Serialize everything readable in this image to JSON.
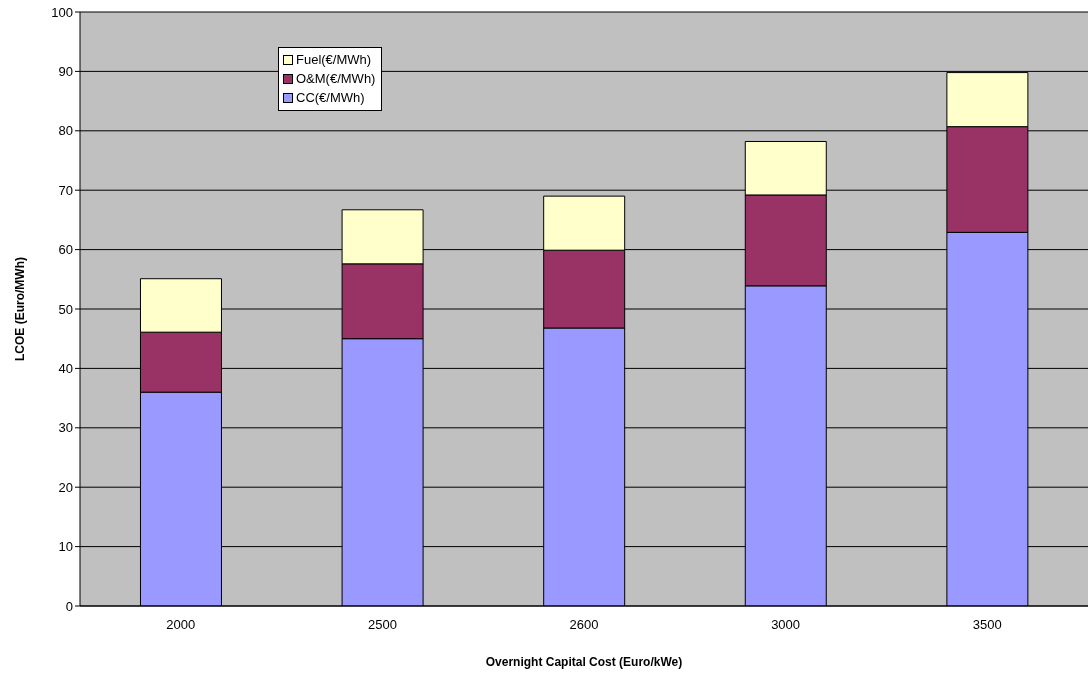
{
  "chart_data": {
    "type": "bar",
    "xlabel": "Overnight Capital Cost (Euro/kWe)",
    "ylabel": "LCOE (Euro/MWh)",
    "categories": [
      "2000",
      "2500",
      "2600",
      "3000",
      "3500"
    ],
    "stacked": true,
    "series": [
      {
        "name": "CC(€/MWh)",
        "color": "#9999ff",
        "values": [
          36,
          45,
          46.8,
          53.9,
          62.9
        ]
      },
      {
        "name": "O&M(€/MWh)",
        "color": "#993366",
        "values": [
          10.1,
          12.6,
          13.1,
          15.3,
          17.8
        ]
      },
      {
        "name": "Fuel(€/MWh)",
        "color": "#ffffcc",
        "values": [
          9,
          9.1,
          9.1,
          9,
          9.1
        ]
      }
    ],
    "ylim": [
      0,
      100
    ],
    "yticks": [
      0,
      10,
      20,
      30,
      40,
      50,
      60,
      70,
      80,
      90,
      100
    ],
    "grid": "y",
    "legend": "top left"
  }
}
